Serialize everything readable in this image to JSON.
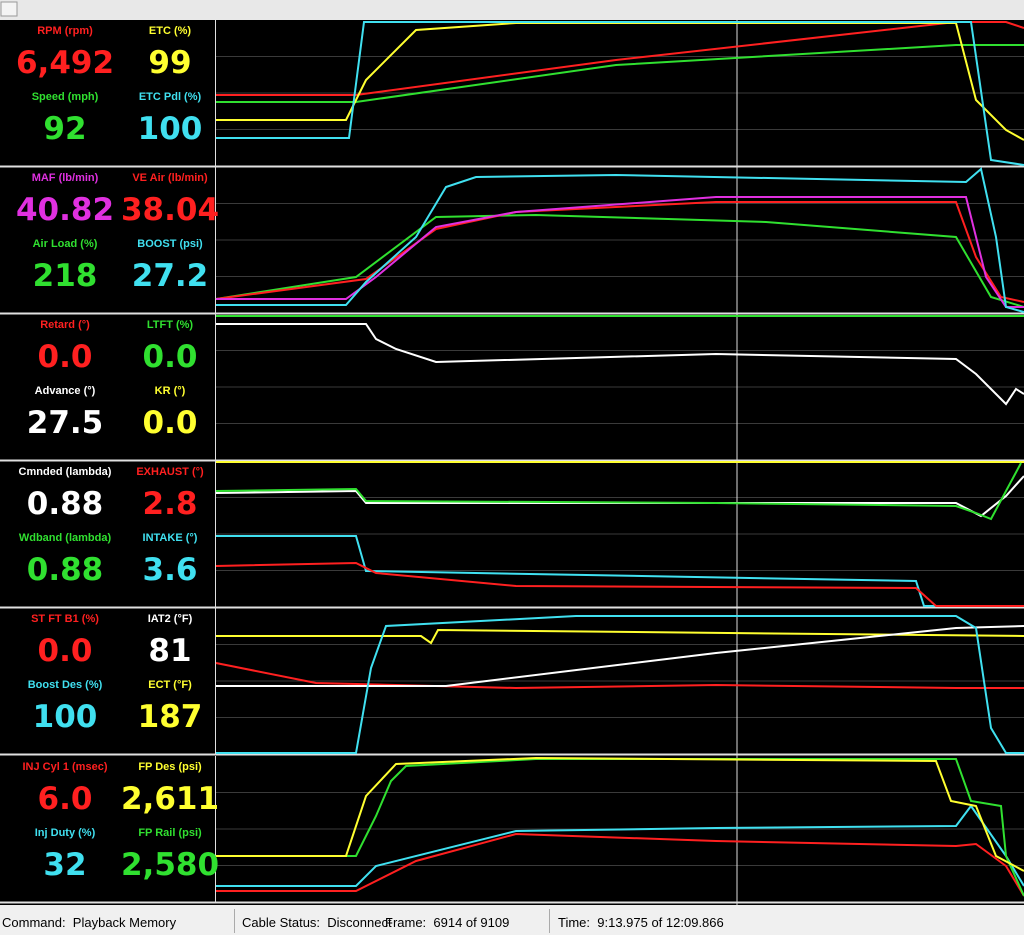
{
  "panels": [
    {
      "gauges": [
        {
          "label": "RPM (rpm)",
          "value": "6,492"
        },
        {
          "label": "ETC (%)",
          "value": "99"
        },
        {
          "label": "Speed (mph)",
          "value": "92"
        },
        {
          "label": "ETC Pdl (%)",
          "value": "100"
        }
      ]
    },
    {
      "gauges": [
        {
          "label": "MAF (lb/min)",
          "value": "40.82"
        },
        {
          "label": "VE Air (lb/min)",
          "value": "38.04"
        },
        {
          "label": "Air Load (%)",
          "value": "218"
        },
        {
          "label": "BOOST (psi)",
          "value": "27.2"
        }
      ]
    },
    {
      "gauges": [
        {
          "label": "Retard (°)",
          "value": "0.0"
        },
        {
          "label": "LTFT (%)",
          "value": "0.0"
        },
        {
          "label": "Advance (°)",
          "value": "27.5"
        },
        {
          "label": "KR (°)",
          "value": "0.0"
        }
      ]
    },
    {
      "gauges": [
        {
          "label": "Cmnded (lambda)",
          "value": "0.88"
        },
        {
          "label": "EXHAUST (°)",
          "value": "2.8"
        },
        {
          "label": "Wdband (lambda)",
          "value": "0.88"
        },
        {
          "label": "INTAKE (°)",
          "value": "3.6"
        }
      ]
    },
    {
      "gauges": [
        {
          "label": "ST FT B1 (%)",
          "value": "0.0"
        },
        {
          "label": "IAT2 (°F)",
          "value": "81"
        },
        {
          "label": "Boost Des (%)",
          "value": "100"
        },
        {
          "label": "ECT (°F)",
          "value": "187"
        }
      ]
    },
    {
      "gauges": [
        {
          "label": "INJ Cyl 1 (msec)",
          "value": "6.0"
        },
        {
          "label": "FP Des (psi)",
          "value": "2,611"
        },
        {
          "label": "Inj Duty (%)",
          "value": "32"
        },
        {
          "label": "FP Rail (psi)",
          "value": "2,580"
        }
      ]
    }
  ],
  "status": {
    "command": "Command:  Playback Memory",
    "cable": "Cable Status:  Disconnect",
    "frame": "Frame:  6914 of 9109",
    "time": "Time:  9:13.975 of 12:09.866"
  }
}
